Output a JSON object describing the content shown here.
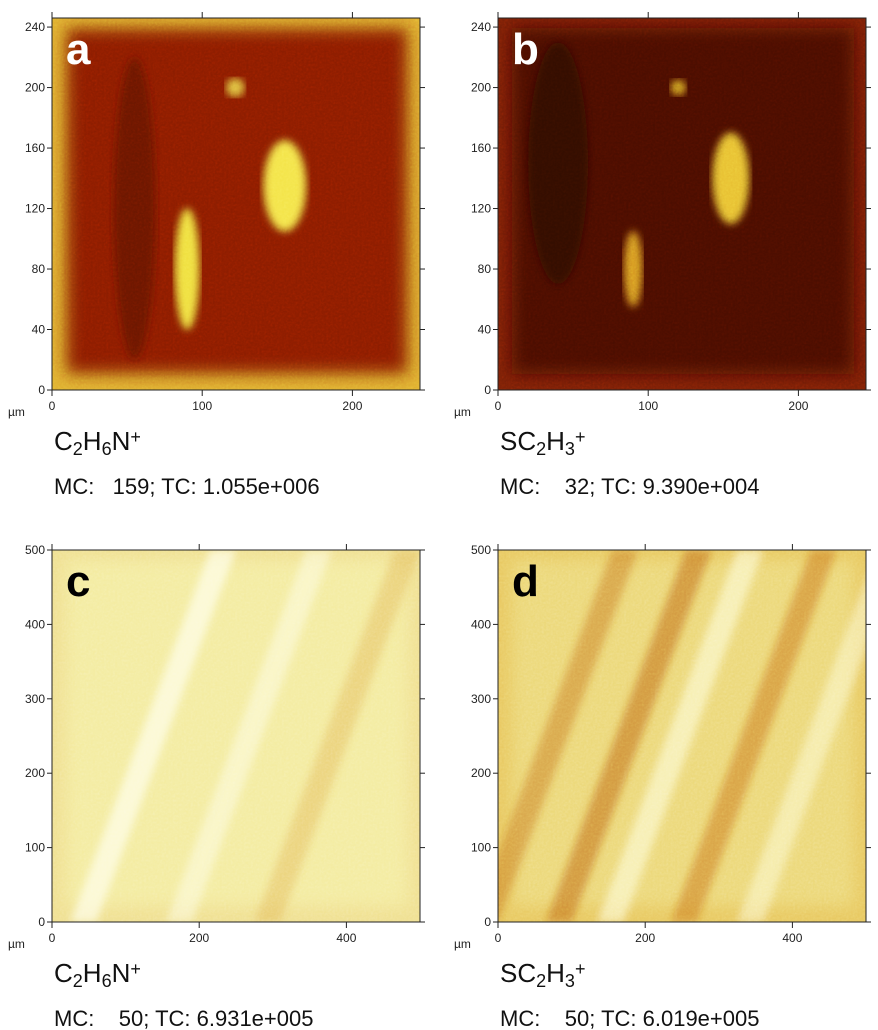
{
  "panels": [
    {
      "label": "a",
      "unit": "µm",
      "xlim": [
        0,
        245
      ],
      "ylim": [
        0,
        246
      ],
      "xticks": [
        0,
        100,
        200
      ],
      "yticks": [
        0,
        40,
        80,
        120,
        160,
        200,
        240
      ],
      "ion": [
        {
          "t": "C"
        },
        {
          "sub": "2"
        },
        {
          "t": "H"
        },
        {
          "sub": "6"
        },
        {
          "t": "N"
        },
        {
          "sup": "+"
        }
      ],
      "counts": "MC:   159; TC: 1.055e+006"
    },
    {
      "label": "b",
      "unit": "µm",
      "xlim": [
        0,
        245
      ],
      "ylim": [
        0,
        246
      ],
      "xticks": [
        0,
        100,
        200
      ],
      "yticks": [
        0,
        40,
        80,
        120,
        160,
        200,
        240
      ],
      "ion": [
        {
          "t": "SC"
        },
        {
          "sub": "2"
        },
        {
          "t": "H"
        },
        {
          "sub": "3"
        },
        {
          "sup": "+"
        }
      ],
      "counts": "MC:    32; TC: 9.390e+004"
    },
    {
      "label": "c",
      "unit": "µm",
      "xlim": [
        0,
        500
      ],
      "ylim": [
        0,
        500
      ],
      "xticks": [
        0,
        200,
        400
      ],
      "yticks": [
        0,
        100,
        200,
        300,
        400,
        500
      ],
      "ion": [
        {
          "t": "C"
        },
        {
          "sub": "2"
        },
        {
          "t": "H"
        },
        {
          "sub": "6"
        },
        {
          "t": "N"
        },
        {
          "sup": "+"
        }
      ],
      "counts": "MC:    50; TC: 6.931e+005"
    },
    {
      "label": "d",
      "unit": "µm",
      "xlim": [
        0,
        500
      ],
      "ylim": [
        0,
        500
      ],
      "xticks": [
        0,
        200,
        400
      ],
      "yticks": [
        0,
        100,
        200,
        300,
        400,
        500
      ],
      "ion": [
        {
          "t": "SC"
        },
        {
          "sub": "2"
        },
        {
          "t": "H"
        },
        {
          "sub": "3"
        },
        {
          "sup": "+"
        }
      ],
      "counts": "MC:    50; TC: 6.019e+005"
    }
  ]
}
